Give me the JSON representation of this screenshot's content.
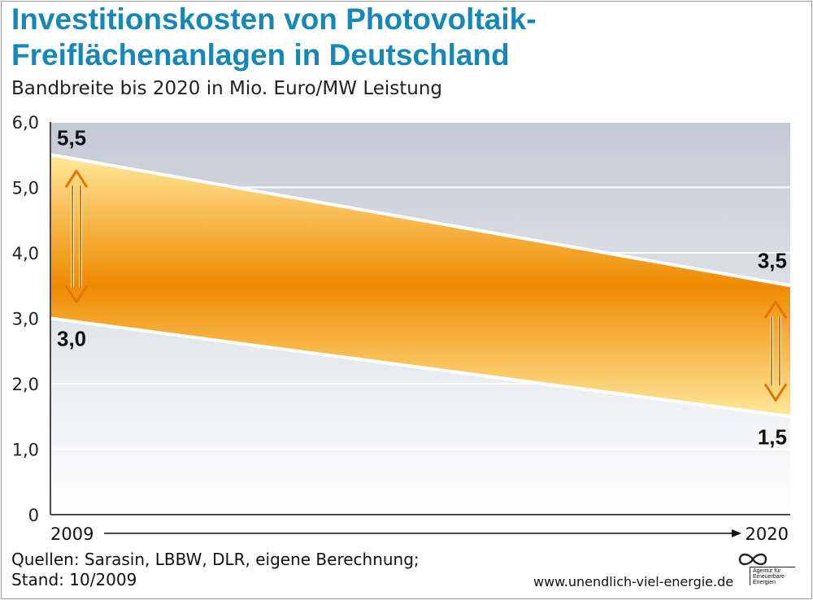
{
  "title_line1": "Investitionskosten von Photovoltaik-",
  "title_line2": "Freiflächenanlagen in Deutschland",
  "subtitle": "Bandbreite bis 2020 in Mio. Euro/MW Leistung",
  "source_line1": "Quellen: Sarasin, LBBW, DLR, eigene Berechnung;",
  "source_line2": "Stand: 10/2009",
  "url": "www.unendlich-viel-energie.de",
  "logo_text": "Agentur für Erneuerbare Energien",
  "colors": {
    "title": "#1687b6",
    "band_core": "#f08a00",
    "band_edge": "#ffe89a",
    "background_top": "#c4cad4",
    "background_bottom": "#ffffff"
  },
  "chart_data": {
    "type": "area",
    "x": [
      "2009",
      "2020"
    ],
    "series": [
      {
        "values": [
          5.5,
          3.5
        ]
      },
      {
        "values": [
          3.0,
          1.5
        ]
      }
    ],
    "value_labels": [
      {
        "x": "2009",
        "text": "5,5"
      },
      {
        "x": "2009",
        "text": "3,0"
      },
      {
        "x": "2020",
        "text": "3,5"
      },
      {
        "x": "2020",
        "text": "1,5"
      }
    ],
    "ylim": [
      0,
      6
    ],
    "yticks": [
      "0",
      "1,0",
      "2,0",
      "3,0",
      "4,0",
      "5,0",
      "6,0"
    ],
    "grid": true
  }
}
